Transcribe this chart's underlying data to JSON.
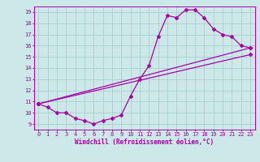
{
  "title": "",
  "xlabel": "Windchill (Refroidissement éolien,°C)",
  "bg_color": "#cce8e8",
  "grid_color": "#aacece",
  "line_color": "#aa00aa",
  "spine_color": "#aa00aa",
  "xlim": [
    -0.5,
    23.5
  ],
  "ylim": [
    8.5,
    19.5
  ],
  "xticks": [
    0,
    1,
    2,
    3,
    4,
    5,
    6,
    7,
    8,
    9,
    10,
    11,
    12,
    13,
    14,
    15,
    16,
    17,
    18,
    19,
    20,
    21,
    22,
    23
  ],
  "yticks": [
    9,
    10,
    11,
    12,
    13,
    14,
    15,
    16,
    17,
    18,
    19
  ],
  "line1_x": [
    0,
    1,
    2,
    3,
    4,
    5,
    6,
    7,
    8,
    9,
    10,
    11,
    12,
    13,
    14,
    15,
    16,
    17,
    18,
    19,
    20,
    21,
    22,
    23
  ],
  "line1_y": [
    10.8,
    10.5,
    10.0,
    10.0,
    9.5,
    9.3,
    9.0,
    9.3,
    9.5,
    9.8,
    11.5,
    13.0,
    14.2,
    16.8,
    18.7,
    18.5,
    19.2,
    19.2,
    18.5,
    17.5,
    17.0,
    16.8,
    16.0,
    15.8
  ],
  "line2_x": [
    0,
    23
  ],
  "line2_y": [
    10.8,
    15.8
  ],
  "line3_x": [
    0,
    23
  ],
  "line3_y": [
    10.8,
    15.2
  ],
  "marker": "D",
  "markersize": 2.0,
  "linewidth": 0.9,
  "tick_fontsize": 5.0,
  "xlabel_fontsize": 5.5
}
